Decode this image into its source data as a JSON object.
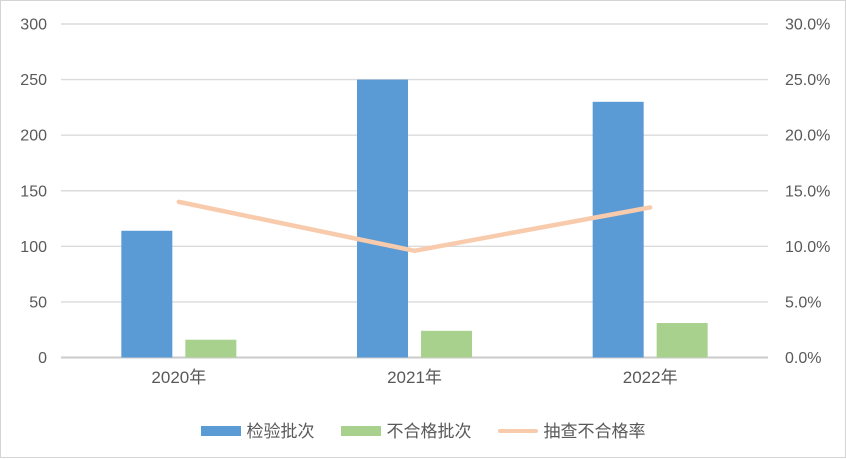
{
  "chart_data": {
    "type": "combo",
    "categories": [
      "2020年",
      "2021年",
      "2022年"
    ],
    "series": [
      {
        "key": "inspected-batches",
        "name": "检验批次",
        "type": "bar",
        "axis": "left",
        "color": "#5B9BD5",
        "values": [
          114,
          250,
          230
        ]
      },
      {
        "key": "failed-batches",
        "name": "不合格批次",
        "type": "bar",
        "axis": "left",
        "color": "#A9D18E",
        "values": [
          16,
          24,
          31
        ]
      },
      {
        "key": "failure-rate",
        "name": "抽查不合格率",
        "type": "line",
        "axis": "right",
        "color": "#F8CBAD",
        "values": [
          14.0,
          9.6,
          13.5
        ],
        "unit": "%"
      }
    ],
    "left_axis": {
      "min": 0,
      "max": 300,
      "step": 50,
      "ticks": [
        "0",
        "50",
        "100",
        "150",
        "200",
        "250",
        "300"
      ]
    },
    "right_axis": {
      "min": 0,
      "max": 30,
      "step": 5,
      "ticks": [
        "0.0%",
        "5.0%",
        "10.0%",
        "15.0%",
        "20.0%",
        "25.0%",
        "30.0%"
      ]
    },
    "grid": true,
    "legend_position": "bottom"
  },
  "style": {
    "gridline_color": "#DBDBDB",
    "baseline_color": "#CBCBCB",
    "tick_text_color": "#595959",
    "background": "#FFFFFF"
  }
}
